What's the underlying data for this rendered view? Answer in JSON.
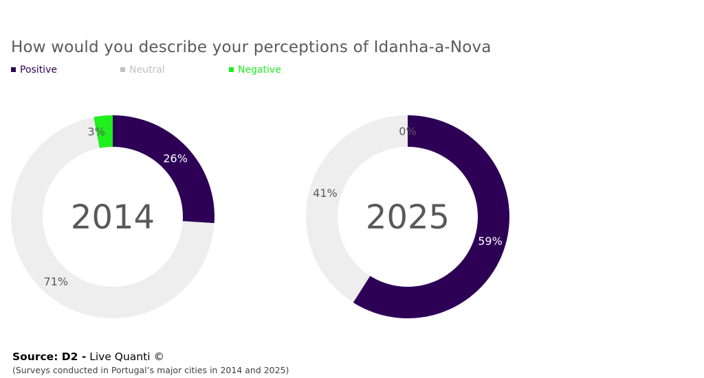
{
  "title": "How would you describe your perceptions of Idanha-a-Nova",
  "legend": [
    {
      "label": "Positive",
      "color": "#2d0056"
    },
    {
      "label": "Neutral",
      "color": "#bfbfc8"
    },
    {
      "label": "Negative",
      "color": "#1fee1f"
    }
  ],
  "chart_data": [
    {
      "type": "pie",
      "center_label": "2014",
      "categories": [
        "Positive",
        "Neutral",
        "Negative"
      ],
      "values": [
        26,
        71,
        3
      ],
      "labels": [
        "26%",
        "71%",
        "3%"
      ],
      "colors": [
        "#2d0056",
        "#eeeeee",
        "#1fee1f"
      ]
    },
    {
      "type": "pie",
      "center_label": "2025",
      "categories": [
        "Positive",
        "Neutral",
        "Negative"
      ],
      "values": [
        59,
        41,
        0
      ],
      "labels": [
        "59%",
        "41%",
        "0%"
      ],
      "colors": [
        "#2d0056",
        "#eeeeee",
        "#1fee1f"
      ]
    }
  ],
  "source": {
    "bold": "Source: D2 -",
    "text": " Live Quanti ©"
  },
  "note": "(Surveys conducted in Portugal’s major cities in 2014 and 2025)"
}
